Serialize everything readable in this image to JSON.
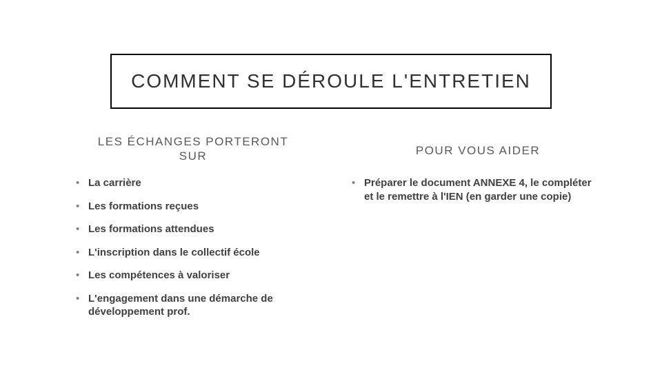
{
  "slide": {
    "title": "COMMENT SE DÉROULE L'ENTRETIEN",
    "title_fontsize": 28,
    "title_letter_spacing": 2,
    "title_border_color": "#000000",
    "title_text_color": "#303030",
    "background_color": "#ffffff"
  },
  "left": {
    "heading_line1": "LES ÉCHANGES PORTERONT",
    "heading_line2": "SUR",
    "heading_fontsize": 17,
    "heading_color": "#595959",
    "items": [
      "La carrière",
      "Les formations reçues",
      "Les formations attendues",
      "L'inscription dans le collectif école",
      "Les compétences à valoriser",
      "L'engagement dans une démarche de développement prof."
    ]
  },
  "right": {
    "heading": "POUR VOUS AIDER",
    "heading_fontsize": 17,
    "heading_color": "#595959",
    "items": [
      "Préparer le document ANNEXE 4, le compléter et le remettre à l'IEN (en garder une copie)"
    ]
  },
  "bullet": {
    "marker_color": "#7f7f7f",
    "text_color": "#404040",
    "fontsize": 15,
    "font_weight": "bold"
  }
}
